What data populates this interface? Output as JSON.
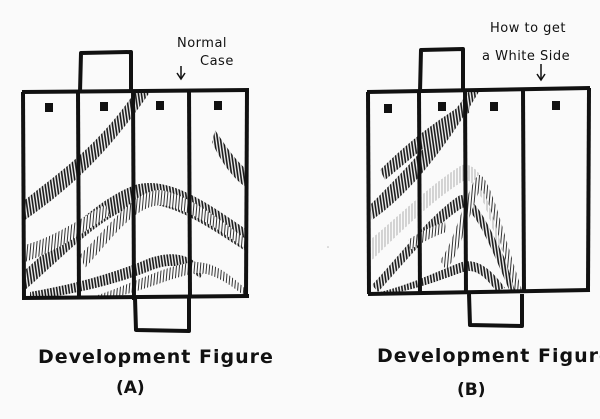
{
  "figure_a": {
    "note_line1": "Normal",
    "note_line2": "Case",
    "caption": "Development Figure",
    "label": "(A)"
  },
  "figure_b": {
    "note_line1": "How to get",
    "note_line2": "a White Side",
    "caption": "Development Figure",
    "label": "(B)"
  },
  "colors": {
    "ink": "#111111",
    "paper": "#fafafa",
    "hatch_light": "#9a9a9a"
  }
}
